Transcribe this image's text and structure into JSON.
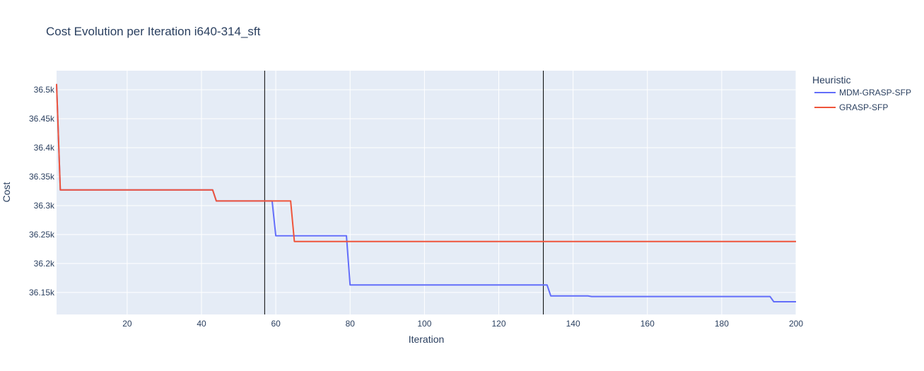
{
  "chart_data": {
    "type": "line",
    "title": "Cost Evolution per Iteration i640-314_sft",
    "xlabel": "Iteration",
    "ylabel": "Cost",
    "xlim": [
      1,
      200
    ],
    "ylim": [
      36112,
      36533
    ],
    "x_ticks": [
      20,
      40,
      60,
      80,
      100,
      120,
      140,
      160,
      180,
      200
    ],
    "y_ticks": [
      {
        "value": 36150,
        "label": "36.15k"
      },
      {
        "value": 36200,
        "label": "36.2k"
      },
      {
        "value": 36250,
        "label": "36.25k"
      },
      {
        "value": 36300,
        "label": "36.3k"
      },
      {
        "value": 36350,
        "label": "36.35k"
      },
      {
        "value": 36400,
        "label": "36.4k"
      },
      {
        "value": 36450,
        "label": "36.45k"
      },
      {
        "value": 36500,
        "label": "36.5k"
      }
    ],
    "grid": true,
    "legend": {
      "title": "Heuristic",
      "placement": "right"
    },
    "vlines": [
      57,
      132
    ],
    "series": [
      {
        "name": "MDM-GRASP-SFP",
        "color": "#636efa",
        "points": [
          [
            1,
            36510
          ],
          [
            2,
            36327
          ],
          [
            43,
            36327
          ],
          [
            44,
            36308
          ],
          [
            59,
            36308
          ],
          [
            60,
            36248
          ],
          [
            79,
            36248
          ],
          [
            80,
            36163
          ],
          [
            133,
            36163
          ],
          [
            134,
            36144
          ],
          [
            144,
            36144
          ],
          [
            145,
            36143
          ],
          [
            193,
            36143
          ],
          [
            194,
            36134
          ],
          [
            200,
            36134
          ]
        ]
      },
      {
        "name": "GRASP-SFP",
        "color": "#ef553b",
        "points": [
          [
            1,
            36510
          ],
          [
            2,
            36327
          ],
          [
            43,
            36327
          ],
          [
            44,
            36308
          ],
          [
            64,
            36308
          ],
          [
            65,
            36238
          ],
          [
            200,
            36238
          ]
        ]
      }
    ]
  },
  "colors": {
    "plot_bg": "#e5ecf6",
    "grid": "#ffffff",
    "text": "#2a3f5f",
    "vline": "#000000"
  }
}
